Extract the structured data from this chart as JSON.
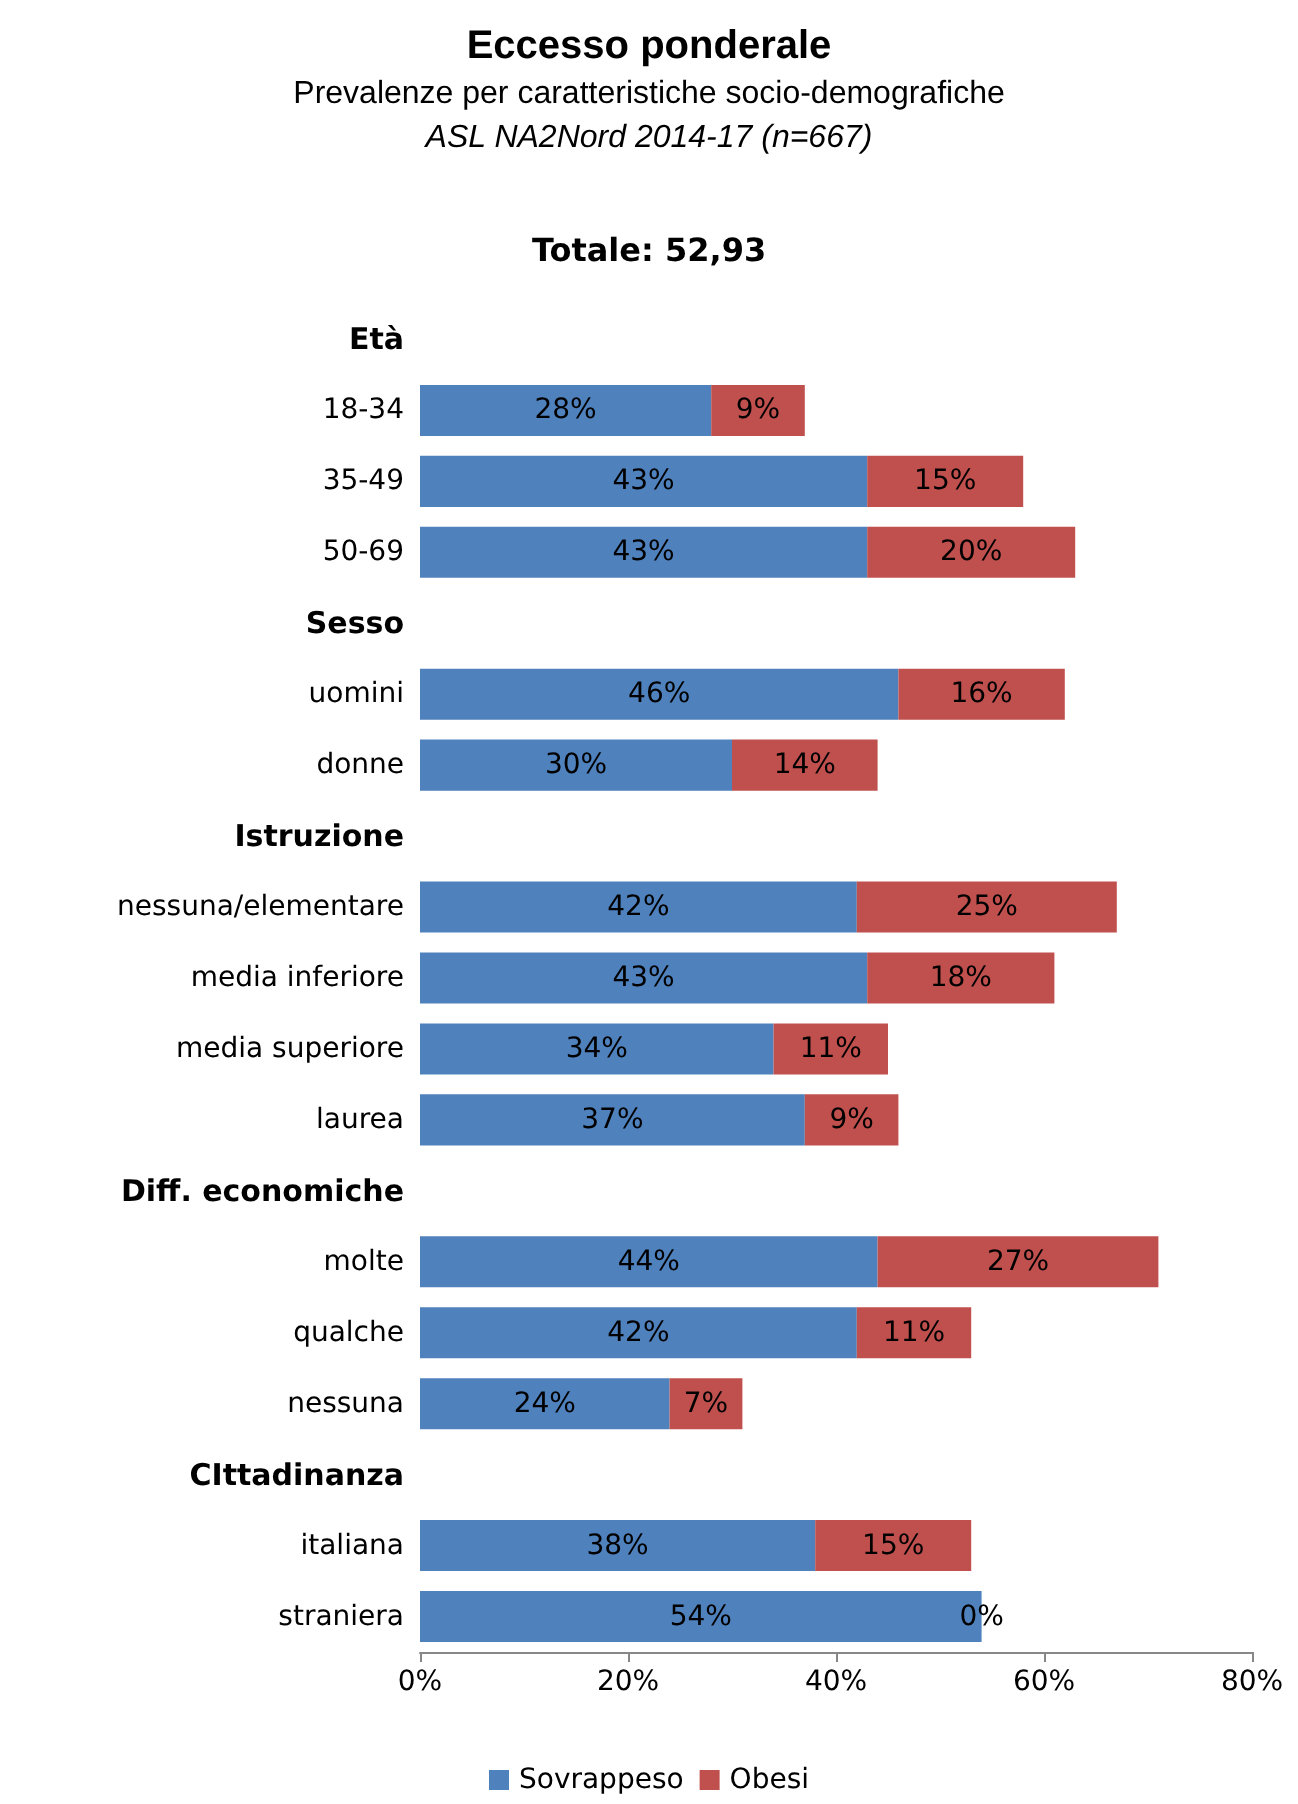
{
  "chart_data": {
    "type": "bar",
    "orientation": "horizontal",
    "stacked": true,
    "title": "Eccesso ponderale",
    "subtitle": "Prevalenze per caratteristiche socio-demografiche",
    "annotations": [
      "ASL NA2Nord 2014-17 (n=667)",
      "Totale: 52,93"
    ],
    "categories": [
      "Età",
      "18-34",
      "35-49",
      "50-69",
      "Sesso",
      "uomini",
      "donne",
      "Istruzione",
      "nessuna/elementare",
      "media inferiore",
      "media superiore",
      "laurea",
      "Diff. economiche",
      "molte",
      "qualche",
      "nessuna",
      "CIttadinanza",
      "italiana",
      "straniera"
    ],
    "series": [
      {
        "name": "Sovrappeso",
        "color": "#4f81bd",
        "values": [
          null,
          28,
          43,
          43,
          null,
          46,
          30,
          null,
          42,
          43,
          34,
          37,
          null,
          44,
          42,
          24,
          null,
          38,
          54
        ],
        "value_labels": [
          null,
          "28%",
          "43%",
          "43%",
          null,
          "46%",
          "30%",
          null,
          "42%",
          "43%",
          "34%",
          "37%",
          null,
          "44%",
          "42%",
          "24%",
          null,
          "38%",
          "54%"
        ]
      },
      {
        "name": "Obesi",
        "color": "#c0504d",
        "values": [
          null,
          9,
          15,
          20,
          null,
          16,
          14,
          null,
          25,
          18,
          11,
          9,
          null,
          27,
          11,
          7,
          null,
          15,
          0
        ],
        "value_labels": [
          null,
          "9%",
          "15%",
          "20%",
          null,
          "16%",
          "14%",
          null,
          "25%",
          "18%",
          "11%",
          "9%",
          null,
          "27%",
          "11%",
          "7%",
          null,
          "15%",
          "0%"
        ]
      }
    ],
    "xlim": [
      0,
      80
    ],
    "xticks": [
      {
        "value": 0,
        "label": "0%"
      },
      {
        "value": 20,
        "label": "20%"
      },
      {
        "value": 40,
        "label": "40%"
      },
      {
        "value": 60,
        "label": "60%"
      },
      {
        "value": 80,
        "label": "80%"
      }
    ],
    "grid": false,
    "legend": "bottom"
  }
}
